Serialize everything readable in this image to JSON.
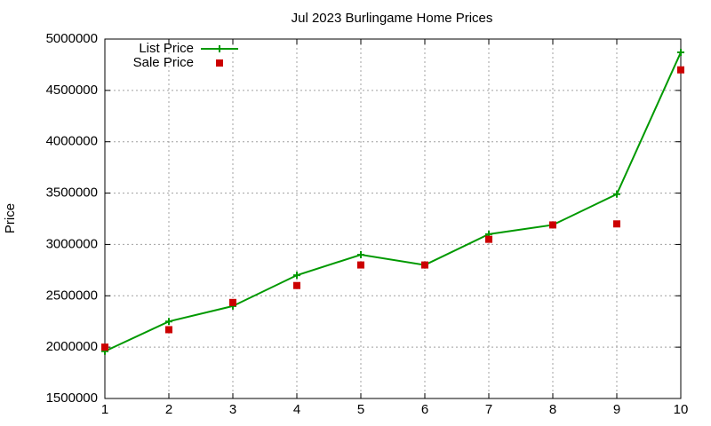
{
  "chart_data": {
    "type": "line",
    "title": "Jul 2023 Burlingame Home Prices",
    "y_label": "Price",
    "x": [
      1,
      2,
      3,
      4,
      5,
      6,
      7,
      8,
      9,
      10
    ],
    "series": [
      {
        "name": "List Price",
        "color": "#009900",
        "style": "linespoints",
        "values": [
          1960000,
          2250000,
          2400000,
          2700000,
          2900000,
          2800000,
          3100000,
          3190000,
          3490000,
          4870000
        ]
      },
      {
        "name": "Sale Price",
        "color": "#cc0000",
        "style": "points",
        "values": [
          2000000,
          2170000,
          2435000,
          2600000,
          2800000,
          2800000,
          3050000,
          3190000,
          3200000,
          4700000
        ]
      }
    ],
    "xlim": [
      1,
      10
    ],
    "xticks": [
      1,
      2,
      3,
      4,
      5,
      6,
      7,
      8,
      9,
      10
    ],
    "ylim": [
      1500000,
      5000000
    ],
    "yticks": [
      1500000,
      2000000,
      2500000,
      3000000,
      3500000,
      4000000,
      4500000,
      5000000
    ],
    "grid": true,
    "legend": "top-left"
  }
}
